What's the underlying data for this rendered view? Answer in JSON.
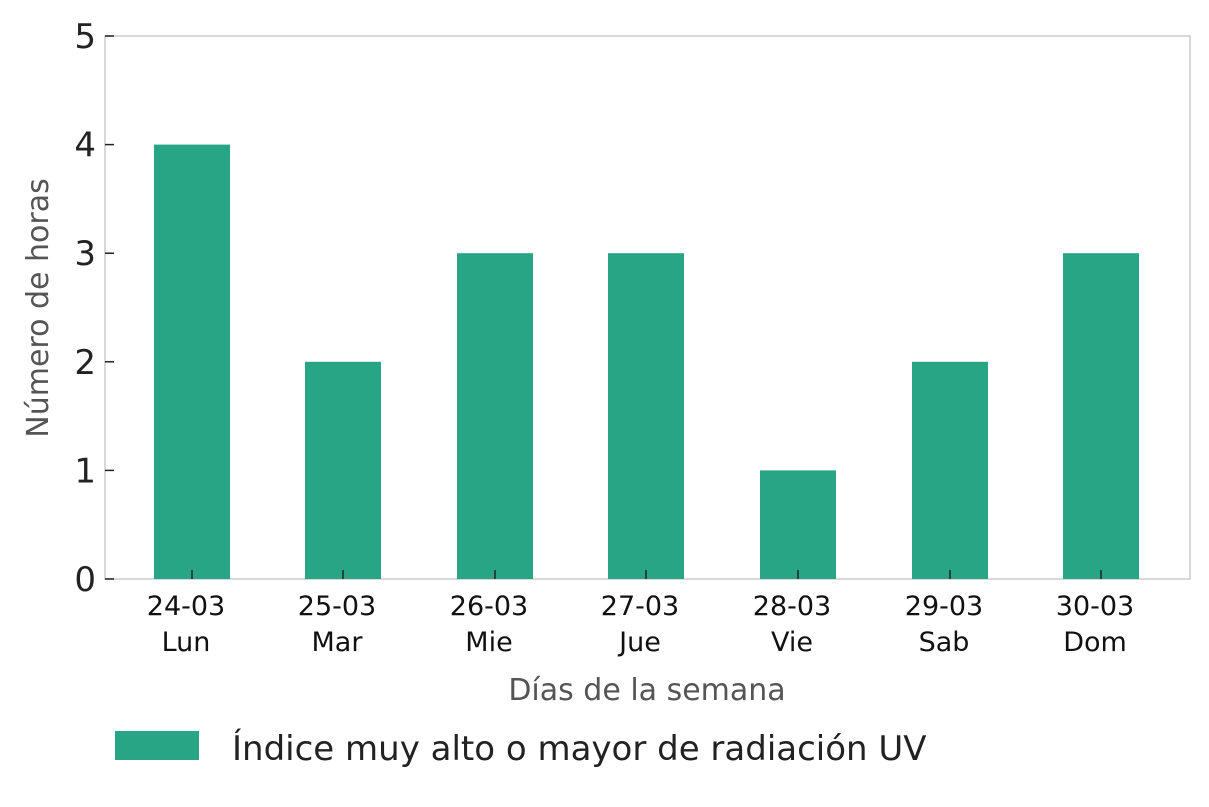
{
  "colors": {
    "bar": "#27a585",
    "frame": "#cccccc",
    "tick": "#222222"
  },
  "chart_data": {
    "type": "bar",
    "categories": [
      {
        "date": "24-03",
        "day": "Lun"
      },
      {
        "date": "25-03",
        "day": "Mar"
      },
      {
        "date": "26-03",
        "day": "Mie"
      },
      {
        "date": "27-03",
        "day": "Jue"
      },
      {
        "date": "28-03",
        "day": "Vie"
      },
      {
        "date": "29-03",
        "day": "Sab"
      },
      {
        "date": "30-03",
        "day": "Dom"
      }
    ],
    "series": [
      {
        "name": "Índice muy alto o mayor de radiación UV",
        "values": [
          4,
          2,
          3,
          3,
          1,
          2,
          3
        ]
      }
    ],
    "xlabel": "Días de la semana",
    "ylabel": "Número de horas",
    "ylim": [
      0,
      5
    ],
    "yticks": [
      "0",
      "1",
      "2",
      "3",
      "4",
      "5"
    ],
    "grid": false,
    "legend_position": "bottom"
  }
}
